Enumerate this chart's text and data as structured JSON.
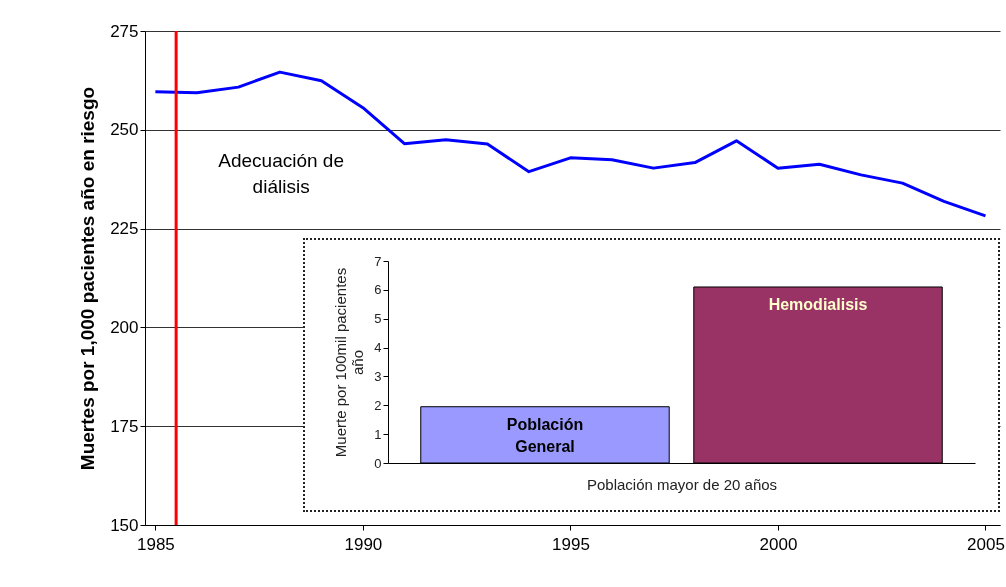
{
  "chart_data": [
    {
      "type": "line",
      "ylabel": "Muertes por 1,000 pacientes año en riesgo",
      "x": [
        1985,
        1986,
        1987,
        1988,
        1989,
        1990,
        1991,
        1992,
        1993,
        1994,
        1995,
        1996,
        1997,
        1998,
        1999,
        2000,
        2001,
        2002,
        2003,
        2004,
        2005
      ],
      "series": [
        {
          "color": "#0000ff",
          "values": [
            259.6,
            259.4,
            260.8,
            264.6,
            262.4,
            255.6,
            246.5,
            247.5,
            246.4,
            239.4,
            242.9,
            242.4,
            240.3,
            241.7,
            247.2,
            240.3,
            241.3,
            238.6,
            236.5,
            231.9,
            228.2
          ]
        }
      ],
      "xlim": [
        1984.75,
        2005.35
      ],
      "xticks": [
        1985,
        1990,
        1995,
        2000,
        2005
      ],
      "ylim": [
        150,
        275
      ],
      "yticks": [
        150,
        175,
        200,
        225,
        250,
        275
      ],
      "grid": "y",
      "ref_lines": [
        {
          "axis": "x",
          "value": 1985.5,
          "label": "Adecuación de\ndiálisis",
          "color": "#ff0000"
        }
      ]
    },
    {
      "type": "bar",
      "xlabel": "Población mayor de 20 años",
      "ylabel": "Muerte por 100mil pacientes\naño",
      "categories": [
        "Población General",
        "Hemodialisis"
      ],
      "values": [
        1.95,
        6.1
      ],
      "colors": [
        "#9999ff",
        "#993366"
      ],
      "ylim": [
        0,
        7
      ],
      "yticks": [
        0,
        1,
        2,
        3,
        4,
        5,
        6,
        7
      ],
      "tick_labels": "y"
    }
  ]
}
